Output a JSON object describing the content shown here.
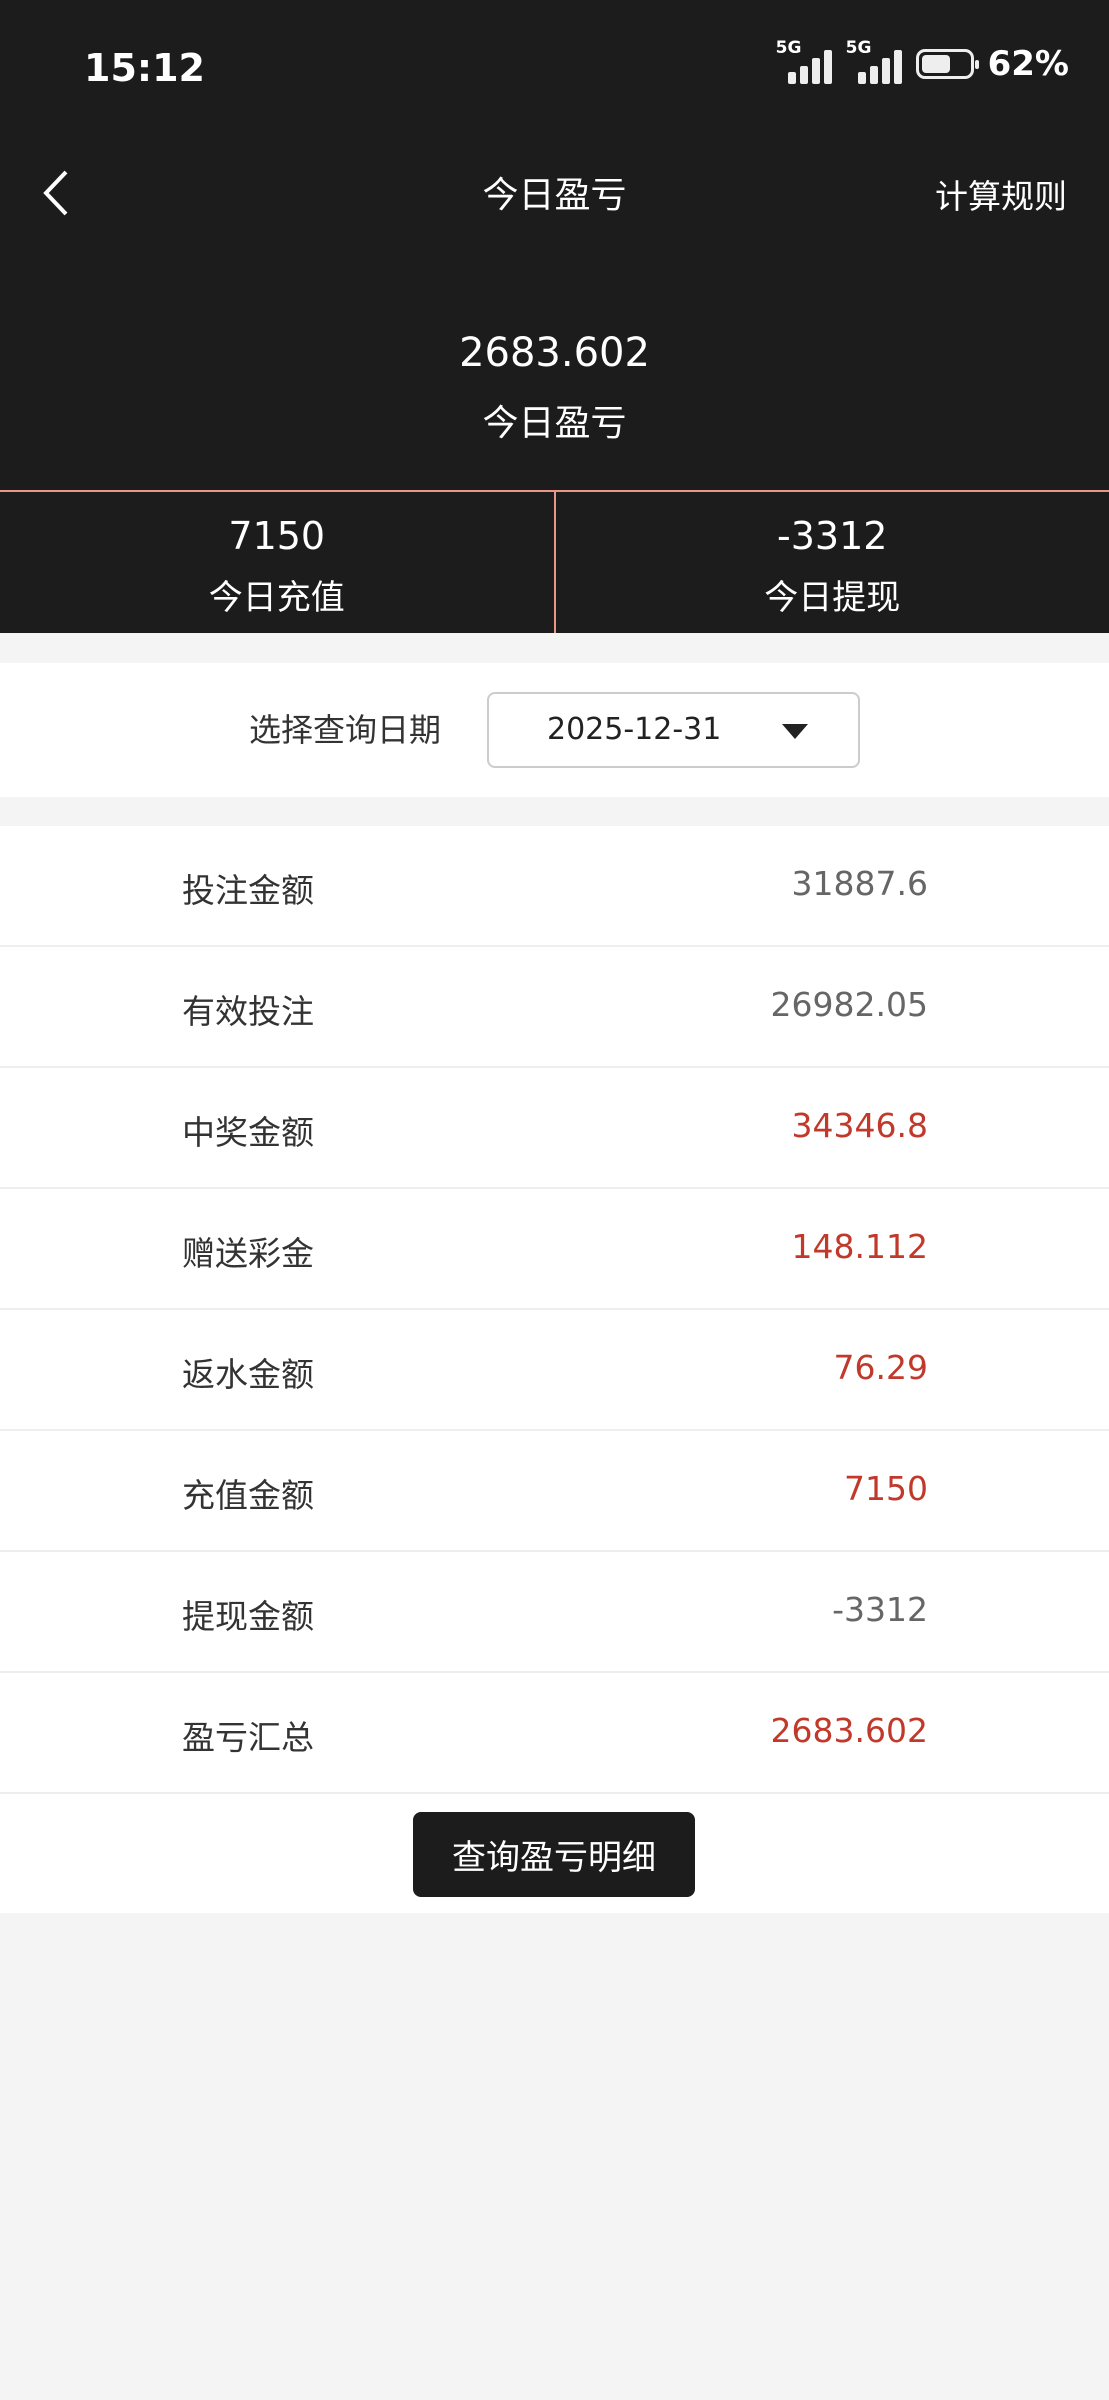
{
  "status_bar": {
    "time": "15:12",
    "network1": "5G",
    "network2": "5G",
    "battery_percent": 62,
    "battery_label": "62%"
  },
  "nav": {
    "title": "今日盈亏",
    "rules_label": "计算规则",
    "back_icon": "chevron-left-icon"
  },
  "summary": {
    "value": "2683.602",
    "label": "今日盈亏"
  },
  "stats": [
    {
      "value": "7150",
      "label": "今日充值"
    },
    {
      "value": "-3312",
      "label": "今日提现"
    }
  ],
  "date_filter": {
    "label": "选择查询日期",
    "value": "2025-12-31"
  },
  "rows": [
    {
      "label": "投注金额",
      "value": "31887.6",
      "highlight": false
    },
    {
      "label": "有效投注",
      "value": "26982.05",
      "highlight": false
    },
    {
      "label": "中奖金额",
      "value": "34346.8",
      "highlight": true
    },
    {
      "label": "赠送彩金",
      "value": "148.112",
      "highlight": true
    },
    {
      "label": "返水金额",
      "value": "76.29",
      "highlight": true
    },
    {
      "label": "充值金额",
      "value": "7150",
      "highlight": true
    },
    {
      "label": "提现金额",
      "value": "-3312",
      "highlight": false
    },
    {
      "label": "盈亏汇总",
      "value": "2683.602",
      "highlight": true
    }
  ],
  "detail_button": "查询盈亏明细",
  "colors": {
    "header_bg": "#1c1c1c",
    "accent_red": "#c0392b",
    "divider": "#e8958a"
  }
}
